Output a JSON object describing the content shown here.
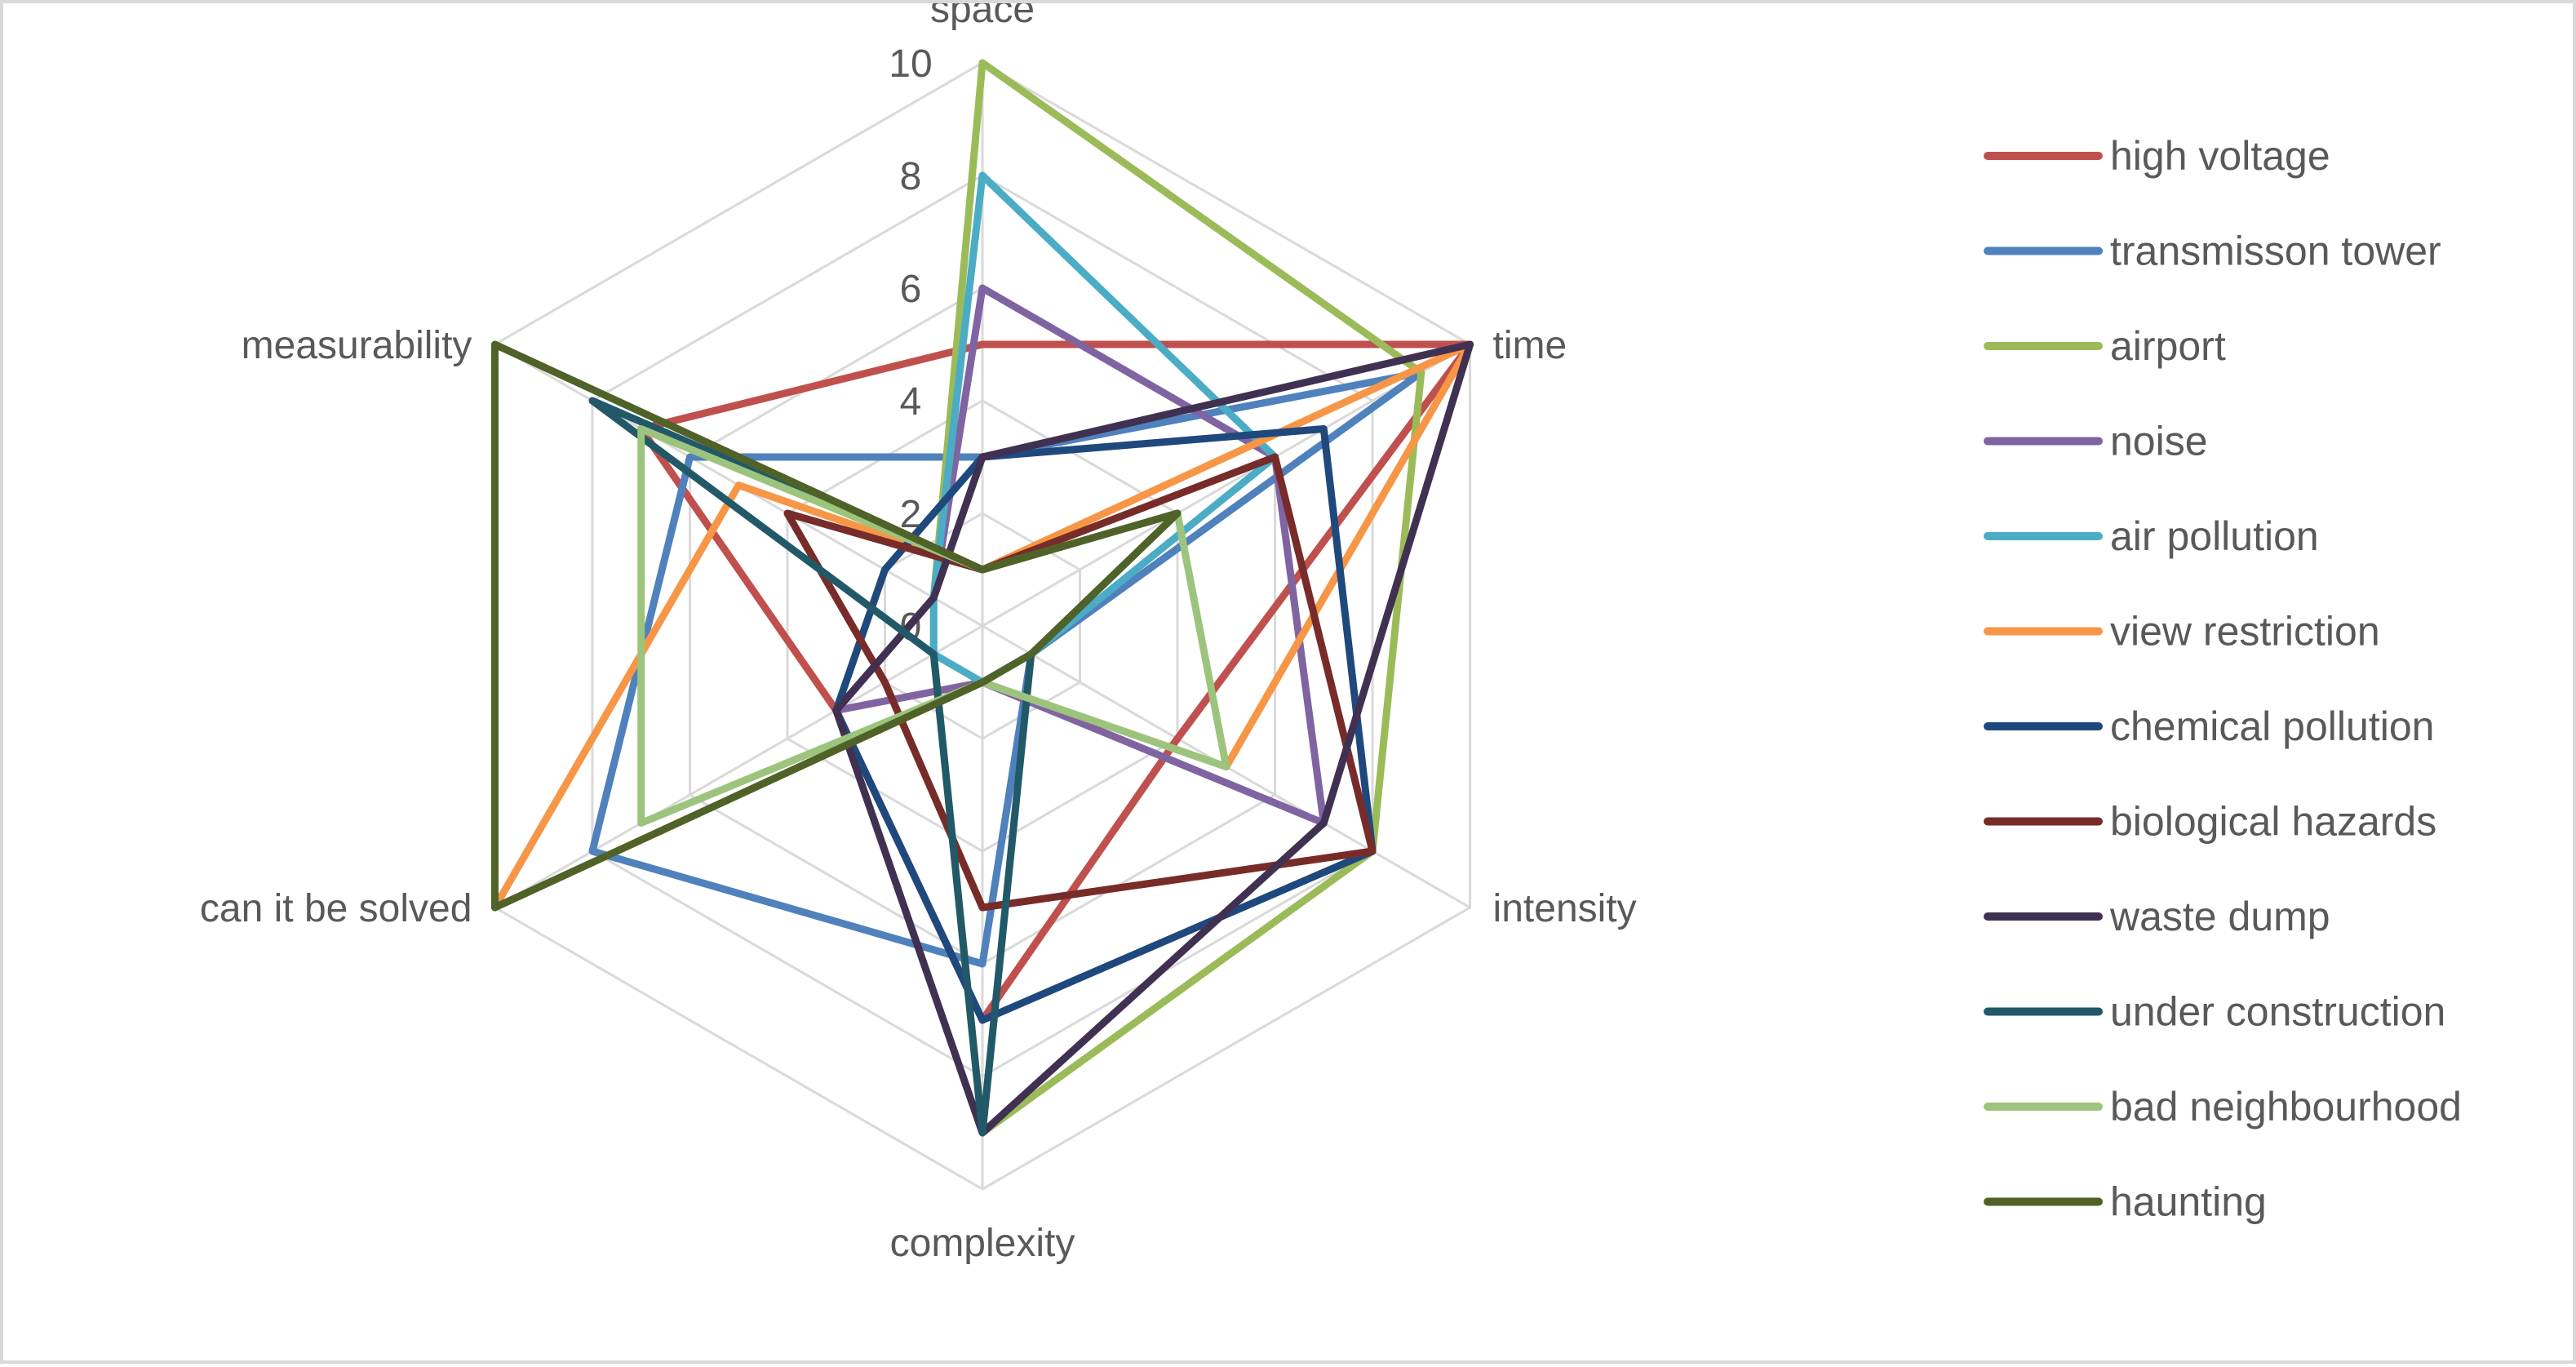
{
  "chart_data": {
    "type": "radar",
    "title": "",
    "axes": [
      "space",
      "time",
      "intensity",
      "complexity",
      "can it be solved",
      "measurability"
    ],
    "rlim": [
      0,
      10
    ],
    "ticks": [
      "0",
      "2",
      "4",
      "6",
      "8",
      "10"
    ],
    "grid": true,
    "legend": "right",
    "series": [
      {
        "name": "high voltage",
        "color": "#C0504D",
        "values": [
          5,
          10,
          4,
          7,
          3,
          7
        ]
      },
      {
        "name": "transmisson tower",
        "color": "#4F81BD",
        "values": [
          3,
          9,
          1,
          6,
          8,
          6
        ]
      },
      {
        "name": "airport",
        "color": "#9BBB59",
        "values": [
          10,
          9,
          8,
          9,
          1,
          1
        ]
      },
      {
        "name": "noise",
        "color": "#8064A2",
        "values": [
          6,
          6,
          7,
          1,
          3,
          1
        ]
      },
      {
        "name": "air pollution",
        "color": "#4BACC6",
        "values": [
          8,
          6,
          1,
          1,
          1,
          1
        ]
      },
      {
        "name": "view restriction",
        "color": "#F79646",
        "values": [
          1,
          10,
          5,
          1,
          10,
          5
        ]
      },
      {
        "name": "chemical pollution",
        "color": "#1F497D",
        "values": [
          3,
          7,
          8,
          7,
          3,
          2
        ]
      },
      {
        "name": "biological hazards",
        "color": "#772C2A",
        "values": [
          1,
          6,
          8,
          5,
          2,
          4
        ]
      },
      {
        "name": "waste dump",
        "color": "#403152",
        "values": [
          3,
          10,
          7,
          9,
          3,
          1
        ]
      },
      {
        "name": "under construction",
        "color": "#215968",
        "values": [
          1,
          4,
          1,
          9,
          1,
          8
        ]
      },
      {
        "name": "bad neighbourhood",
        "color": "#9CC47D",
        "values": [
          1,
          4,
          5,
          1,
          7,
          7
        ]
      },
      {
        "name": "haunting",
        "color": "#4F6228",
        "values": [
          1,
          4,
          1,
          1,
          10,
          10
        ]
      }
    ]
  }
}
